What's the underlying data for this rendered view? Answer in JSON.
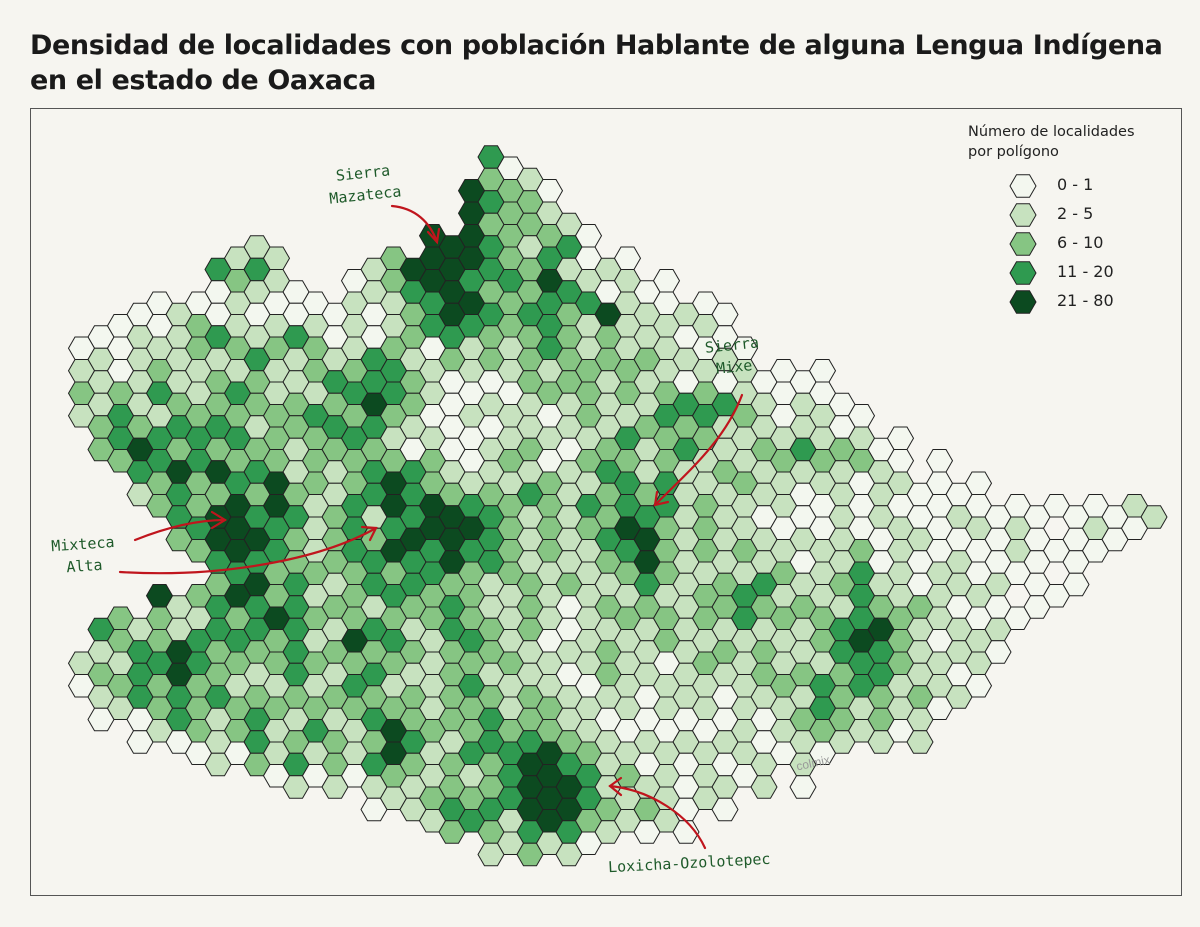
{
  "title": {
    "line1": "Densidad de localidades con población Hablante de alguna Lengua Indígena",
    "line2": "en el estado de Oaxaca"
  },
  "legend": {
    "title_line1": "Número de localidades",
    "title_line2": "por polígono",
    "classes": [
      {
        "label": "0 - 1",
        "color": "#f3f7ef"
      },
      {
        "label": "2 - 5",
        "color": "#c7e2bf"
      },
      {
        "label": "6 - 10",
        "color": "#86c583"
      },
      {
        "label": "11 - 20",
        "color": "#2f9a50"
      },
      {
        "label": "21 - 80",
        "color": "#0c4a20"
      }
    ]
  },
  "annotations": {
    "mazateca_1": "Sierra",
    "mazateca_2": "Mazateca",
    "mixe_1": "Sierra",
    "mixe_2": "Mixe",
    "mixteca_1": "Mixteca",
    "mixteca_2": "Alta",
    "loxicha": "Loxicha-Ozolotepec",
    "arrow_color": "#c0151d"
  },
  "watermark": "colmix",
  "map": {
    "hex_stroke": "#222222",
    "hex_grid": [
      ".....................3",
      ".....................201",
      "....................43220",
      "....................422211",
      ".........1........444321230",
      ".......3131....12444432231010",
      ".......02110..01234432324310100",
      "...0010010000010123443233234110100",
      ".001012311131010123332223212111010",
      "01011121232121132102121232121211010",
      "110121121211232332101012122121101010000",
      "2121321232121234321001012121212323110100",
      "12321323212233232100101101211232312101100",
      ".234323232212232101001121012312321121312100",
      "..23343423212123232101210123212112112121210 0",
      "...12322324221234322121321123231112110110110000",
      "....2324434312314344332121323331211010010100010000000011",
      ".....234443212323444432121234421211101010011001010 0100",
      "......23433212334334332121123421212110112010010010000",
      ".......2342321232332212212112321121321123110110100 0",
      "....41234323122132232112101212112232121132121010 00",
      ".321211323432123212322121011212121312123342111010",
      ".12324323223124232123211011211211212112343210110",
      "12133432212321232112212110121101211212123321101",
      "01232323121212321212321211011011101121323212110",
      ".01023212321212322122312211010101010123212110",
      "...01021231232124321232322110101011011211101",
      "......010213121342123234432110101011010",
      "..........01010121121234443121101101 0",
      "...............0112323344432121010",
      "..................12321343211010",
      ".....................112110"
    ]
  }
}
